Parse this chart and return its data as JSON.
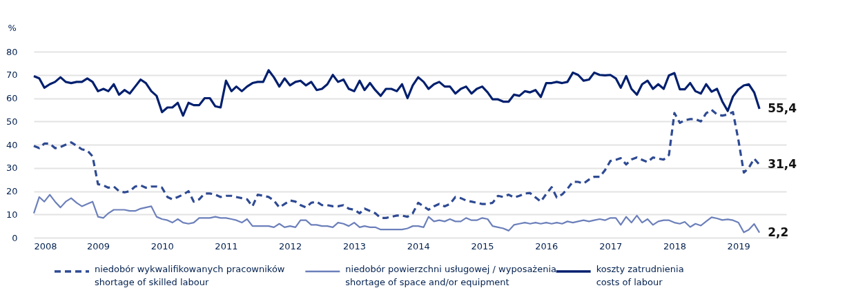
{
  "chart_data": {
    "type": "line",
    "ylabel": "%",
    "x": [
      "2008-01",
      "2008-02",
      "2008-03",
      "2008-04",
      "2008-05",
      "2008-06",
      "2008-07",
      "2008-08",
      "2008-09",
      "2008-10",
      "2008-11",
      "2008-12",
      "2009-01",
      "2009-02",
      "2009-03",
      "2009-04",
      "2009-05",
      "2009-06",
      "2009-07",
      "2009-08",
      "2009-09",
      "2009-10",
      "2009-11",
      "2009-12",
      "2010-01",
      "2010-02",
      "2010-03",
      "2010-04",
      "2010-05",
      "2010-06",
      "2010-07",
      "2010-08",
      "2010-09",
      "2010-10",
      "2010-11",
      "2010-12",
      "2011-01",
      "2011-02",
      "2011-03",
      "2011-04",
      "2011-05",
      "2011-06",
      "2011-07",
      "2011-08",
      "2011-09",
      "2011-10",
      "2011-11",
      "2011-12",
      "2012-01",
      "2012-02",
      "2012-03",
      "2012-04",
      "2012-05",
      "2012-06",
      "2012-07",
      "2012-08",
      "2012-09",
      "2012-10",
      "2012-11",
      "2012-12",
      "2013-01",
      "2013-02",
      "2013-03",
      "2013-04",
      "2013-05",
      "2013-06",
      "2013-07",
      "2013-08",
      "2013-09",
      "2013-10",
      "2013-11",
      "2013-12",
      "2014-01",
      "2014-02",
      "2014-03",
      "2014-04",
      "2014-05",
      "2014-06",
      "2014-07",
      "2014-08",
      "2014-09",
      "2014-10",
      "2014-11",
      "2014-12",
      "2015-01",
      "2015-02",
      "2015-03",
      "2015-04",
      "2015-05",
      "2015-06",
      "2015-07",
      "2015-08",
      "2015-09",
      "2015-10",
      "2015-11",
      "2015-12",
      "2016-01",
      "2016-02",
      "2016-03",
      "2016-04",
      "2016-05",
      "2016-06",
      "2016-07",
      "2016-08",
      "2016-09",
      "2016-10",
      "2016-11",
      "2016-12",
      "2017-01",
      "2017-02",
      "2017-03",
      "2017-04",
      "2017-05",
      "2017-06",
      "2017-07",
      "2017-08",
      "2017-09",
      "2017-10",
      "2017-11",
      "2017-12",
      "2018-01",
      "2018-02",
      "2018-03",
      "2018-04",
      "2018-05",
      "2018-06",
      "2018-07",
      "2018-08",
      "2018-09",
      "2018-10",
      "2018-11",
      "2018-12",
      "2019-01",
      "2019-02",
      "2019-03",
      "2019-04",
      "2019-05"
    ],
    "series": [
      {
        "name": "niedobór wykwalifikowanych pracowników\nshortage of skilled labour",
        "color": "#2e4a93",
        "line_style": "dashed",
        "values": [
          39.5,
          38.5,
          40.5,
          40.5,
          38.5,
          39,
          40,
          41,
          39.5,
          38,
          37.5,
          35,
          23,
          22.5,
          21.5,
          22,
          20,
          19.5,
          20,
          22,
          22.5,
          21.5,
          22,
          22,
          21.5,
          17.5,
          16.5,
          17.5,
          18.5,
          20,
          15.5,
          16.5,
          19,
          19,
          18.5,
          17.5,
          18,
          18,
          17.5,
          17,
          16.5,
          13.5,
          18.5,
          18,
          17.5,
          16,
          13,
          14.5,
          16,
          15.5,
          14,
          13,
          15,
          15.5,
          14,
          14,
          13.5,
          13.5,
          14,
          12.5,
          12,
          10.5,
          12.5,
          11.5,
          10.5,
          8.5,
          8.5,
          9,
          9.5,
          9.5,
          9,
          10.5,
          15,
          13.5,
          12,
          13.5,
          14.5,
          13.5,
          14.5,
          17.5,
          17,
          16,
          15.5,
          15,
          14.5,
          14.5,
          15,
          18,
          17.5,
          18.5,
          17.3,
          18,
          19,
          19.2,
          17.3,
          15.5,
          18.8,
          21.7,
          17.3,
          18.6,
          21,
          24.1,
          24,
          23.3,
          25,
          26.2,
          26.2,
          29,
          33,
          33.5,
          34.2,
          31.5,
          33.6,
          34.5,
          33.5,
          32.5,
          34.5,
          34,
          33.6,
          35.6,
          53.6,
          49.4,
          50.5,
          51,
          51,
          50,
          53.5,
          55,
          53,
          52.5,
          53,
          54,
          42,
          28,
          30,
          34,
          31.4
        ]
      },
      {
        "name": "niedobór powierzchni usługowej / wyposażenia\nshortage of space and/or equipment",
        "color": "#6b7fba",
        "line_style": "solid",
        "values": [
          10.5,
          17.5,
          15.5,
          18.5,
          15.5,
          13,
          15.5,
          17,
          15,
          13.5,
          14.5,
          15.5,
          9,
          8.5,
          10.5,
          12,
          12,
          12,
          11.5,
          11.5,
          12.5,
          13,
          13.5,
          9,
          8,
          7.5,
          6.5,
          8,
          6.5,
          6,
          6.5,
          8.5,
          8.5,
          8.5,
          9,
          8.5,
          8.5,
          8,
          7.5,
          6.5,
          8,
          5,
          5,
          5,
          5,
          4.5,
          6,
          4.5,
          5,
          4.5,
          7.5,
          7.5,
          5.5,
          5.5,
          5,
          5,
          4.5,
          6.5,
          6,
          5,
          6.5,
          4.5,
          5,
          4.5,
          4.5,
          3.5,
          3.5,
          3.5,
          3.5,
          3.5,
          4,
          5,
          5,
          4.5,
          9,
          7,
          7.5,
          7,
          8,
          7,
          7,
          8.5,
          7.5,
          7.5,
          8.5,
          8,
          5,
          4.5,
          4,
          3,
          5.5,
          6,
          6.5,
          6,
          6.5,
          6,
          6.5,
          6,
          6.5,
          6,
          7,
          6.5,
          7,
          7.5,
          7,
          7.5,
          8,
          7.5,
          8.5,
          8.5,
          5.5,
          9,
          6.5,
          9.5,
          6.5,
          8,
          5.5,
          7,
          7.5,
          7.5,
          6.5,
          6,
          6.8,
          4.6,
          6,
          5.2,
          7,
          8.8,
          8.3,
          7.6,
          7.9,
          7.5,
          6.5,
          2.3,
          3.4,
          5.9,
          2.2
        ]
      },
      {
        "name": "koszty zatrudnienia\ncosts of labour",
        "color": "#001f6e",
        "line_style": "solid",
        "values": [
          69.5,
          68.5,
          64.5,
          66,
          67,
          69,
          67,
          66.5,
          67,
          67,
          68.5,
          67,
          63,
          64,
          63,
          66,
          61.5,
          63.5,
          62,
          65,
          68,
          66.5,
          63,
          61,
          54,
          56,
          56,
          58,
          52.5,
          58,
          57,
          57,
          60,
          60,
          56.5,
          56,
          67.5,
          63,
          65,
          63,
          65,
          66.5,
          67,
          67,
          72,
          69,
          65,
          68.5,
          65.5,
          67,
          67.5,
          65.5,
          67,
          63.5,
          64,
          66,
          70,
          67,
          68,
          64,
          63,
          67.5,
          63.5,
          66.5,
          63.5,
          61,
          64,
          64,
          63,
          66,
          60,
          65.5,
          69,
          67,
          64,
          66,
          67,
          65,
          65,
          62,
          64,
          65,
          62,
          64,
          65,
          62.5,
          59.5,
          59.5,
          58.5,
          58.5,
          61.5,
          61,
          63,
          62.5,
          63.5,
          60.5,
          66.5,
          66.5,
          67,
          66.5,
          67,
          71,
          70,
          67.5,
          68,
          71,
          70,
          69.8,
          70,
          68.5,
          64.5,
          69.5,
          64,
          61.5,
          66,
          67.5,
          64,
          66,
          64,
          69.8,
          70.8,
          63.8,
          63.8,
          66.5,
          63,
          62,
          66,
          62.8,
          64,
          58.6,
          54.5,
          60.7,
          63.8,
          65.5,
          66,
          62.5,
          55.4
        ]
      }
    ],
    "annotations": [
      {
        "text": "55,4",
        "x": "2019-05",
        "y": 55.4
      },
      {
        "text": "31,4",
        "x": "2019-05",
        "y": 31.4
      },
      {
        "text": "2,2",
        "x": "2019-05",
        "y": 2.2
      }
    ],
    "xlim": [
      "2008-01",
      "2019-10"
    ],
    "xticks": [
      {
        "value": "2008-01",
        "label": "2008"
      },
      {
        "value": "2009-01",
        "label": "2009"
      },
      {
        "value": "2010-01",
        "label": "2010"
      },
      {
        "value": "2011-01",
        "label": "2011"
      },
      {
        "value": "2012-01",
        "label": "2012"
      },
      {
        "value": "2013-01",
        "label": "2013"
      },
      {
        "value": "2014-01",
        "label": "2014"
      },
      {
        "value": "2015-01",
        "label": "2015"
      },
      {
        "value": "2016-01",
        "label": "2016"
      },
      {
        "value": "2017-01",
        "label": "2017"
      },
      {
        "value": "2018-01",
        "label": "2018"
      },
      {
        "value": "2019-01",
        "label": "2019"
      }
    ],
    "ylim": [
      0,
      80
    ],
    "yticks": [
      0,
      10,
      20,
      30,
      40,
      50,
      60,
      70,
      80
    ],
    "grid": "y",
    "legend": "bottom"
  }
}
